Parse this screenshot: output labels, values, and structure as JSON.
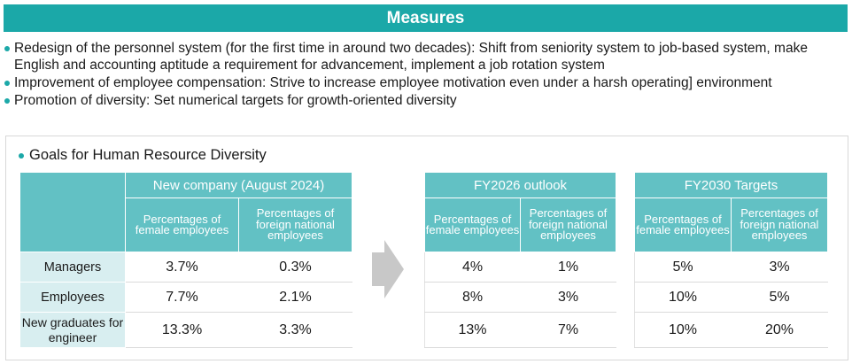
{
  "header": {
    "title": "Measures"
  },
  "bullets": [
    "Redesign of the personnel system (for the first time in around two decades): Shift from seniority system to job-based system, make English and accounting aptitude a requirement for advancement, implement a job rotation system",
    "Improvement of employee compensation: Strive to increase employee motivation even under a harsh operating] environment",
    "Promotion of diversity: Set numerical targets for growth-oriented diversity"
  ],
  "goals": {
    "title": "Goals for Human Resource Diversity",
    "col_female": "Percentages of female employees",
    "col_foreign": "Percentages of foreign national employees",
    "row_labels": [
      "Managers",
      "Employees",
      "New graduates for engineer"
    ],
    "tables": [
      {
        "heading": "New company (August 2024)",
        "rows": [
          [
            "3.7%",
            "0.3%"
          ],
          [
            "7.7%",
            "2.1%"
          ],
          [
            "13.3%",
            "3.3%"
          ]
        ]
      },
      {
        "heading": "FY2026 outlook",
        "rows": [
          [
            "4%",
            "1%"
          ],
          [
            "8%",
            "3%"
          ],
          [
            "13%",
            "7%"
          ]
        ]
      },
      {
        "heading": "FY2030 Targets",
        "rows": [
          [
            "5%",
            "3%"
          ],
          [
            "10%",
            "5%"
          ],
          [
            "10%",
            "20%"
          ]
        ]
      }
    ]
  },
  "colors": {
    "accent": "#1ba8a8",
    "table_header": "#62c1c4",
    "row_label_bg": "#d8eef0",
    "arrow": "#c8c8c8"
  },
  "icons": {
    "arrow": "right-arrow-icon"
  }
}
